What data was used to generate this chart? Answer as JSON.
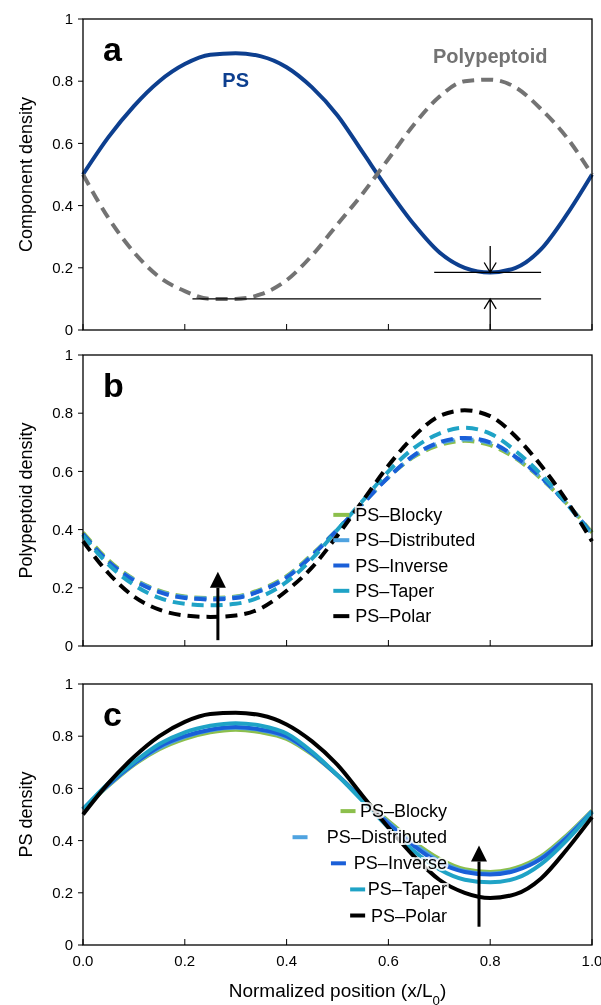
{
  "chart_data": [
    {
      "type": "line",
      "title": "a",
      "ylabel": "Component density",
      "x": [
        0,
        0.05,
        0.1,
        0.15,
        0.2,
        0.25,
        0.3,
        0.35,
        0.4,
        0.45,
        0.5,
        0.55,
        0.6,
        0.65,
        0.7,
        0.75,
        0.8,
        0.85,
        0.9,
        0.95,
        1
      ],
      "xlim": [
        0,
        1
      ],
      "xticks": [
        0,
        0.2,
        0.4,
        0.6,
        0.8,
        1
      ],
      "ylim": [
        0,
        1
      ],
      "yticks": [
        0,
        0.2,
        0.4,
        0.6,
        0.8,
        1
      ],
      "tick_labels": "y",
      "legend": false,
      "grid": false,
      "ref_lines": [
        {
          "axis": "y",
          "value": 0.185
        },
        {
          "axis": "y",
          "value": 0.1
        }
      ],
      "series": [
        {
          "name": "PS",
          "color": "#0d3f8f",
          "line_style": "solid",
          "values": [
            0.5,
            0.62,
            0.72,
            0.8,
            0.855,
            0.885,
            0.89,
            0.88,
            0.845,
            0.78,
            0.69,
            0.57,
            0.45,
            0.34,
            0.25,
            0.2,
            0.185,
            0.2,
            0.26,
            0.37,
            0.5
          ]
        },
        {
          "name": "Polypeptoid",
          "color": "#737373",
          "line_style": "dashed",
          "values": [
            0.5,
            0.36,
            0.25,
            0.17,
            0.125,
            0.1,
            0.1,
            0.115,
            0.16,
            0.24,
            0.34,
            0.44,
            0.55,
            0.66,
            0.75,
            0.8,
            0.805,
            0.78,
            0.71,
            0.62,
            0.5
          ]
        }
      ]
    },
    {
      "type": "line",
      "title": "b",
      "ylabel": "Polypeptoid density",
      "x": [
        0,
        0.05,
        0.1,
        0.15,
        0.2,
        0.25,
        0.3,
        0.35,
        0.4,
        0.45,
        0.5,
        0.55,
        0.6,
        0.65,
        0.7,
        0.75,
        0.8,
        0.85,
        0.9,
        0.95,
        1
      ],
      "xlim": [
        0,
        1
      ],
      "xticks": [
        0,
        0.2,
        0.4,
        0.6,
        0.8,
        1
      ],
      "ylim": [
        0,
        1
      ],
      "yticks": [
        0,
        0.2,
        0.4,
        0.6,
        0.8,
        1
      ],
      "tick_labels": "y",
      "legend": "bottom",
      "grid": false,
      "line_style": "dashed",
      "series": [
        {
          "name": "PS–Blocky",
          "color": "#8cbf4c",
          "values": [
            0.39,
            0.295,
            0.23,
            0.19,
            0.17,
            0.165,
            0.17,
            0.195,
            0.24,
            0.315,
            0.4,
            0.49,
            0.58,
            0.65,
            0.69,
            0.705,
            0.69,
            0.645,
            0.575,
            0.49,
            0.39
          ]
        },
        {
          "name": "PS–Distributed",
          "color": "#4fa3e0",
          "values": [
            0.385,
            0.29,
            0.228,
            0.188,
            0.168,
            0.163,
            0.168,
            0.192,
            0.237,
            0.312,
            0.4,
            0.49,
            0.58,
            0.653,
            0.697,
            0.71,
            0.697,
            0.648,
            0.578,
            0.49,
            0.385
          ]
        },
        {
          "name": "PS–Inverse",
          "color": "#1a5fd8",
          "values": [
            0.385,
            0.29,
            0.225,
            0.185,
            0.165,
            0.16,
            0.165,
            0.19,
            0.235,
            0.31,
            0.4,
            0.49,
            0.58,
            0.655,
            0.7,
            0.715,
            0.7,
            0.65,
            0.58,
            0.49,
            0.385
          ]
        },
        {
          "name": "PS–Taper",
          "color": "#1fa3c6",
          "values": [
            0.38,
            0.28,
            0.21,
            0.165,
            0.145,
            0.14,
            0.145,
            0.17,
            0.22,
            0.3,
            0.4,
            0.5,
            0.6,
            0.68,
            0.73,
            0.75,
            0.73,
            0.67,
            0.59,
            0.49,
            0.38
          ]
        },
        {
          "name": "PS–Polar",
          "color": "#000000",
          "values": [
            0.36,
            0.25,
            0.17,
            0.125,
            0.105,
            0.1,
            0.105,
            0.13,
            0.19,
            0.27,
            0.38,
            0.5,
            0.62,
            0.72,
            0.79,
            0.81,
            0.79,
            0.72,
            0.62,
            0.5,
            0.36
          ]
        }
      ]
    },
    {
      "type": "line",
      "title": "c",
      "ylabel": "PS density",
      "xlabel": "Normalized position (x/L$_{0}$)",
      "x": [
        0,
        0.05,
        0.1,
        0.15,
        0.2,
        0.25,
        0.3,
        0.35,
        0.4,
        0.45,
        0.5,
        0.55,
        0.6,
        0.65,
        0.7,
        0.75,
        0.8,
        0.85,
        0.9,
        0.95,
        1
      ],
      "xlim": [
        0,
        1
      ],
      "xticks": [
        {
          "value": 0,
          "label": "0.0"
        },
        {
          "value": 0.2,
          "label": "0.2"
        },
        {
          "value": 0.4,
          "label": "0.4"
        },
        {
          "value": 0.6,
          "label": "0.6"
        },
        {
          "value": 0.8,
          "label": "0.8"
        },
        {
          "value": 1,
          "label": "1.0"
        }
      ],
      "ylim": [
        0,
        1
      ],
      "yticks": [
        0,
        0.2,
        0.4,
        0.6,
        0.8,
        1
      ],
      "legend": "bottom right",
      "grid": false,
      "line_style": "solid",
      "series": [
        {
          "name": "PS–Blocky",
          "color": "#8cbf4c",
          "values": [
            0.52,
            0.61,
            0.69,
            0.75,
            0.79,
            0.815,
            0.825,
            0.815,
            0.79,
            0.73,
            0.65,
            0.56,
            0.475,
            0.395,
            0.33,
            0.29,
            0.28,
            0.295,
            0.34,
            0.42,
            0.515
          ]
        },
        {
          "name": "PS–Distributed",
          "color": "#4fa3e0",
          "values": [
            0.52,
            0.612,
            0.693,
            0.755,
            0.797,
            0.823,
            0.832,
            0.823,
            0.795,
            0.733,
            0.65,
            0.558,
            0.47,
            0.388,
            0.322,
            0.283,
            0.273,
            0.288,
            0.334,
            0.415,
            0.513
          ]
        },
        {
          "name": "PS–Inverse",
          "color": "#1a5fd8",
          "values": [
            0.52,
            0.615,
            0.695,
            0.76,
            0.8,
            0.825,
            0.835,
            0.825,
            0.8,
            0.735,
            0.65,
            0.555,
            0.465,
            0.38,
            0.315,
            0.28,
            0.27,
            0.285,
            0.33,
            0.41,
            0.51
          ]
        },
        {
          "name": "PS–Taper",
          "color": "#1fa3c6",
          "values": [
            0.52,
            0.62,
            0.7,
            0.77,
            0.815,
            0.84,
            0.85,
            0.84,
            0.81,
            0.74,
            0.65,
            0.55,
            0.45,
            0.36,
            0.29,
            0.25,
            0.24,
            0.255,
            0.31,
            0.4,
            0.51
          ]
        },
        {
          "name": "PS–Polar",
          "color": "#000000",
          "values": [
            0.5,
            0.62,
            0.72,
            0.8,
            0.855,
            0.885,
            0.89,
            0.88,
            0.845,
            0.78,
            0.69,
            0.57,
            0.45,
            0.34,
            0.25,
            0.2,
            0.18,
            0.195,
            0.255,
            0.365,
            0.49
          ]
        }
      ]
    }
  ]
}
